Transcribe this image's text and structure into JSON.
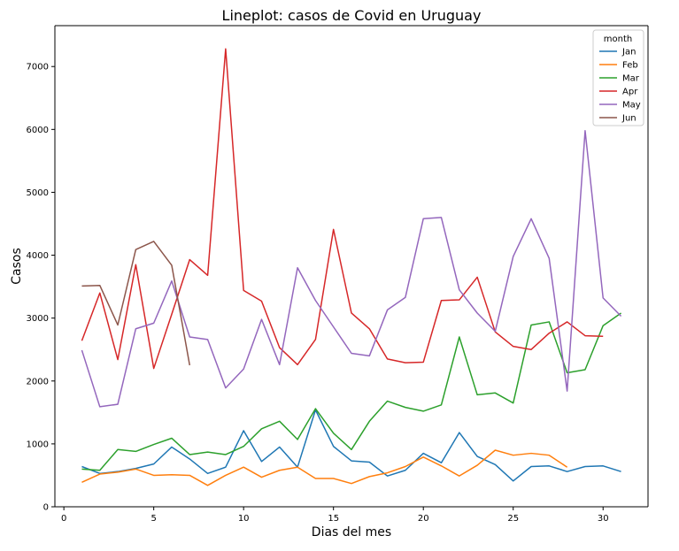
{
  "chart_data": {
    "type": "line",
    "title": "Lineplot: casos de Covid en Uruguay",
    "xlabel": "Dias del mes",
    "ylabel": "Casos",
    "xlim": [
      -0.5,
      32.5
    ],
    "ylim": [
      0,
      7650
    ],
    "xticks": [
      0,
      5,
      10,
      15,
      20,
      25,
      30
    ],
    "yticks": [
      0,
      1000,
      2000,
      3000,
      4000,
      5000,
      6000,
      7000
    ],
    "grid": false,
    "legend": {
      "title": "month",
      "placement": "top-right"
    },
    "series": [
      {
        "name": "Jan",
        "color": "#1f77b4",
        "x": [
          1,
          2,
          3,
          4,
          5,
          6,
          7,
          8,
          9,
          10,
          11,
          12,
          13,
          14,
          15,
          16,
          17,
          18,
          19,
          20,
          21,
          22,
          23,
          24,
          25,
          26,
          27,
          28,
          29,
          30,
          31
        ],
        "values": [
          640,
          530,
          560,
          610,
          680,
          950,
          760,
          530,
          630,
          1210,
          720,
          950,
          630,
          1540,
          960,
          730,
          710,
          490,
          580,
          850,
          700,
          1180,
          800,
          670,
          410,
          640,
          650,
          560,
          640,
          650,
          560
        ]
      },
      {
        "name": "Feb",
        "color": "#ff7f0e",
        "x": [
          1,
          2,
          3,
          4,
          5,
          6,
          7,
          8,
          9,
          10,
          11,
          12,
          13,
          14,
          15,
          16,
          17,
          18,
          19,
          20,
          21,
          22,
          23,
          24,
          25,
          26,
          27,
          28
        ],
        "values": [
          390,
          520,
          550,
          600,
          500,
          510,
          500,
          340,
          500,
          630,
          470,
          580,
          630,
          450,
          450,
          370,
          480,
          540,
          640,
          790,
          650,
          490,
          660,
          900,
          820,
          850,
          820,
          630
        ]
      },
      {
        "name": "Mar",
        "color": "#2ca02c",
        "x": [
          1,
          2,
          3,
          4,
          5,
          6,
          7,
          8,
          9,
          10,
          11,
          12,
          13,
          14,
          15,
          16,
          17,
          18,
          19,
          20,
          21,
          22,
          23,
          24,
          25,
          26,
          27,
          28,
          29,
          30,
          31
        ],
        "values": [
          600,
          580,
          910,
          880,
          990,
          1090,
          830,
          870,
          830,
          960,
          1240,
          1360,
          1070,
          1560,
          1170,
          910,
          1360,
          1680,
          1580,
          1520,
          1620,
          2700,
          1780,
          1810,
          1650,
          2890,
          2940,
          2130,
          2180,
          2880,
          3080
        ]
      },
      {
        "name": "Apr",
        "color": "#d62728",
        "x": [
          1,
          2,
          3,
          4,
          5,
          6,
          7,
          8,
          9,
          10,
          11,
          12,
          13,
          14,
          15,
          16,
          17,
          18,
          19,
          20,
          21,
          22,
          23,
          24,
          25,
          26,
          27,
          28,
          29,
          30
        ],
        "values": [
          2640,
          3400,
          2340,
          3850,
          2200,
          3060,
          3930,
          3680,
          7280,
          3440,
          3270,
          2530,
          2260,
          2660,
          4410,
          3080,
          2830,
          2350,
          2290,
          2300,
          3280,
          3290,
          3650,
          2780,
          2550,
          2500,
          2760,
          2940,
          2720,
          2710
        ]
      },
      {
        "name": "May",
        "color": "#9467bd",
        "x": [
          1,
          2,
          3,
          4,
          5,
          6,
          7,
          8,
          9,
          10,
          11,
          12,
          13,
          14,
          15,
          16,
          17,
          18,
          19,
          20,
          21,
          22,
          23,
          24,
          25,
          26,
          27,
          28,
          29,
          30,
          31
        ],
        "values": [
          2490,
          1590,
          1630,
          2830,
          2920,
          3590,
          2700,
          2660,
          1890,
          2190,
          2980,
          2260,
          3800,
          3280,
          2860,
          2440,
          2400,
          3130,
          3330,
          4580,
          4600,
          3450,
          3080,
          2790,
          3980,
          4580,
          3950,
          1840,
          5980,
          3320,
          3030
        ]
      },
      {
        "name": "Jun",
        "color": "#8c564b",
        "x": [
          1,
          2,
          3,
          4,
          5,
          6,
          7
        ],
        "values": [
          3510,
          3520,
          2890,
          4090,
          4220,
          3840,
          2250
        ]
      }
    ]
  }
}
